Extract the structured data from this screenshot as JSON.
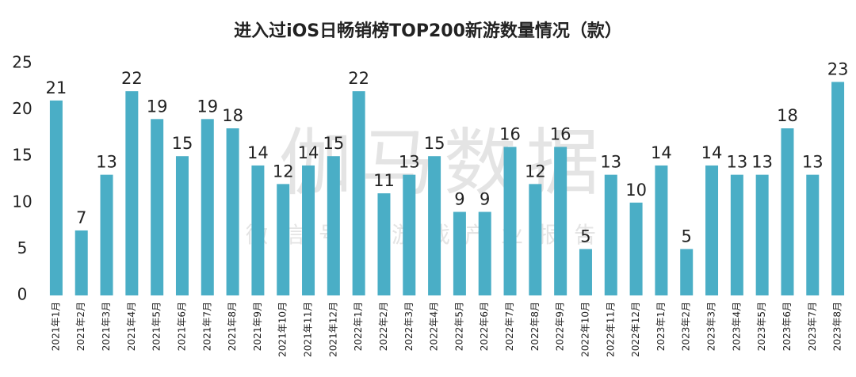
{
  "chart_data": {
    "type": "bar",
    "title": "进入过iOS日畅销榜TOP200新游数量情况（款）",
    "watermark": "伽马数据",
    "watermark_sub": "微信号：游戏产业报告",
    "categories": [
      "2021年1月",
      "2021年2月",
      "2021年3月",
      "2021年4月",
      "2021年5月",
      "2021年6月",
      "2021年7月",
      "2021年8月",
      "2021年9月",
      "2021年10月",
      "2021年11月",
      "2021年12月",
      "2022年1月",
      "2022年2月",
      "2022年3月",
      "2022年4月",
      "2022年5月",
      "2022年6月",
      "2022年7月",
      "2022年8月",
      "2022年9月",
      "2022年10月",
      "2022年11月",
      "2022年12月",
      "2023年1月",
      "2023年2月",
      "2023年3月",
      "2023年4月",
      "2023年5月",
      "2023年6月",
      "2023年7月",
      "2023年8月"
    ],
    "values": [
      21,
      7,
      13,
      22,
      19,
      15,
      19,
      18,
      14,
      12,
      14,
      15,
      22,
      11,
      13,
      15,
      9,
      9,
      16,
      12,
      16,
      5,
      13,
      10,
      14,
      5,
      14,
      13,
      13,
      18,
      13,
      23
    ],
    "color": "#4aaec6",
    "ylim": [
      0,
      25
    ],
    "yticks": [
      0,
      5,
      10,
      15,
      20,
      25
    ],
    "grid": false
  }
}
